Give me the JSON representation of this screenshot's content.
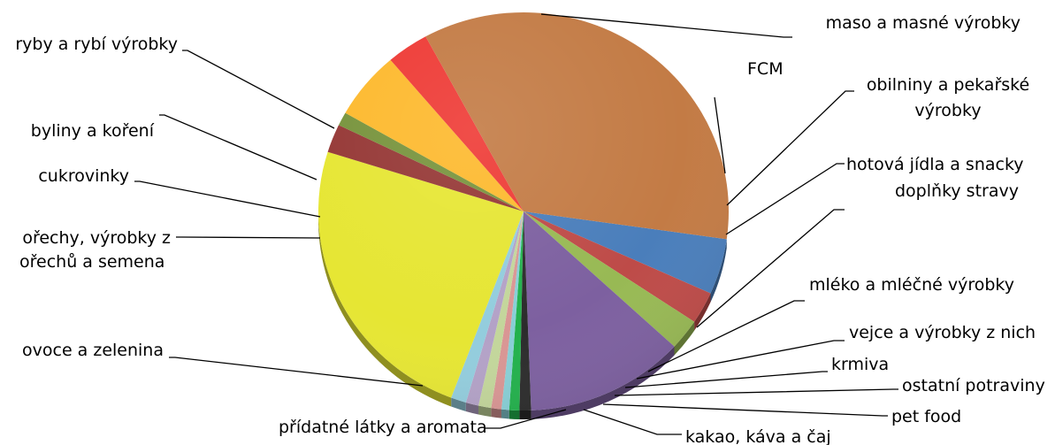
{
  "chart_data": {
    "type": "pie",
    "title": "",
    "style": "3d-tilted",
    "legend": "none",
    "slices": [
      {
        "label": "FCM",
        "value": 4.5,
        "color": "#4a7ebb"
      },
      {
        "label": "obilniny a pekařské výrobky",
        "value": 2.6,
        "color": "#be4b48"
      },
      {
        "label": "hotová jídla a snacky",
        "value": 2.5,
        "color": "#98b954"
      },
      {
        "label": "doplňky stravy",
        "value": 12.5,
        "color": "#7d60a0"
      },
      {
        "label": "mléko a mléčné výrobky",
        "value": 0.9,
        "color": "#2c2c2c"
      },
      {
        "label": "vejce a výrobky z nich",
        "value": 0.8,
        "color": "#22b14c"
      },
      {
        "label": "krmiva",
        "value": 0.6,
        "color": "#88cfd6"
      },
      {
        "label": "ostatní potraviny",
        "value": 0.8,
        "color": "#d99694"
      },
      {
        "label": "pet food",
        "value": 1.0,
        "color": "#c3d69b"
      },
      {
        "label": "kakao, káva a čaj",
        "value": 1.0,
        "color": "#b3a2c7"
      },
      {
        "label": "přídatné látky a aromata",
        "value": 1.2,
        "color": "#93cddd"
      },
      {
        "label": "ovoce a zelenina",
        "value": 24.0,
        "color": "#e6e633"
      },
      {
        "label": "ořechy, výrobky z\nořechů a semena",
        "value": 2.3,
        "color": "#953735"
      },
      {
        "label": "cukrovinky",
        "value": 1.1,
        "color": "#77933c"
      },
      {
        "label": "byliny a koření",
        "value": 5.5,
        "color": "#fdb92d"
      },
      {
        "label": "ryby a rybí výrobky",
        "value": 3.3,
        "color": "#ee3a35"
      },
      {
        "label": "maso a masné výrobky",
        "value": 35.0,
        "color": "#c37b45"
      }
    ]
  }
}
